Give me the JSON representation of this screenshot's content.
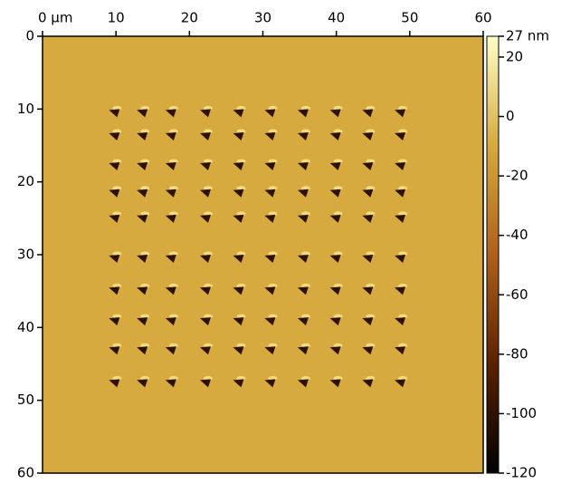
{
  "chart_data": {
    "type": "image",
    "xlim": [
      0,
      60
    ],
    "xticks": [
      {
        "value": 0,
        "label": "0 μm"
      },
      10,
      20,
      30,
      40,
      50,
      60
    ],
    "ylim": [
      60,
      0
    ],
    "yticks": [
      0,
      10,
      20,
      30,
      40,
      50,
      60
    ],
    "background": "#d6aa3e",
    "indents": {
      "x": [
        9.9,
        13.7,
        17.6,
        22.3,
        26.8,
        31.1,
        35.6,
        40.0,
        44.4,
        48.8
      ],
      "y": [
        10.5,
        13.7,
        17.8,
        21.5,
        25.0,
        30.5,
        34.9,
        39.1,
        43.1,
        47.6
      ],
      "color": "#2e1200",
      "highlight": "#fff0a0"
    },
    "colorbar": {
      "clim": [
        -120,
        27
      ],
      "ticks": [
        {
          "value": 27,
          "label": "27 nm"
        },
        20,
        0,
        -20,
        -40,
        -60,
        -80,
        -100,
        -120
      ],
      "colors": [
        "#000000",
        "#5a2200",
        "#b0601a",
        "#d6aa3e",
        "#ffffc8"
      ]
    }
  }
}
